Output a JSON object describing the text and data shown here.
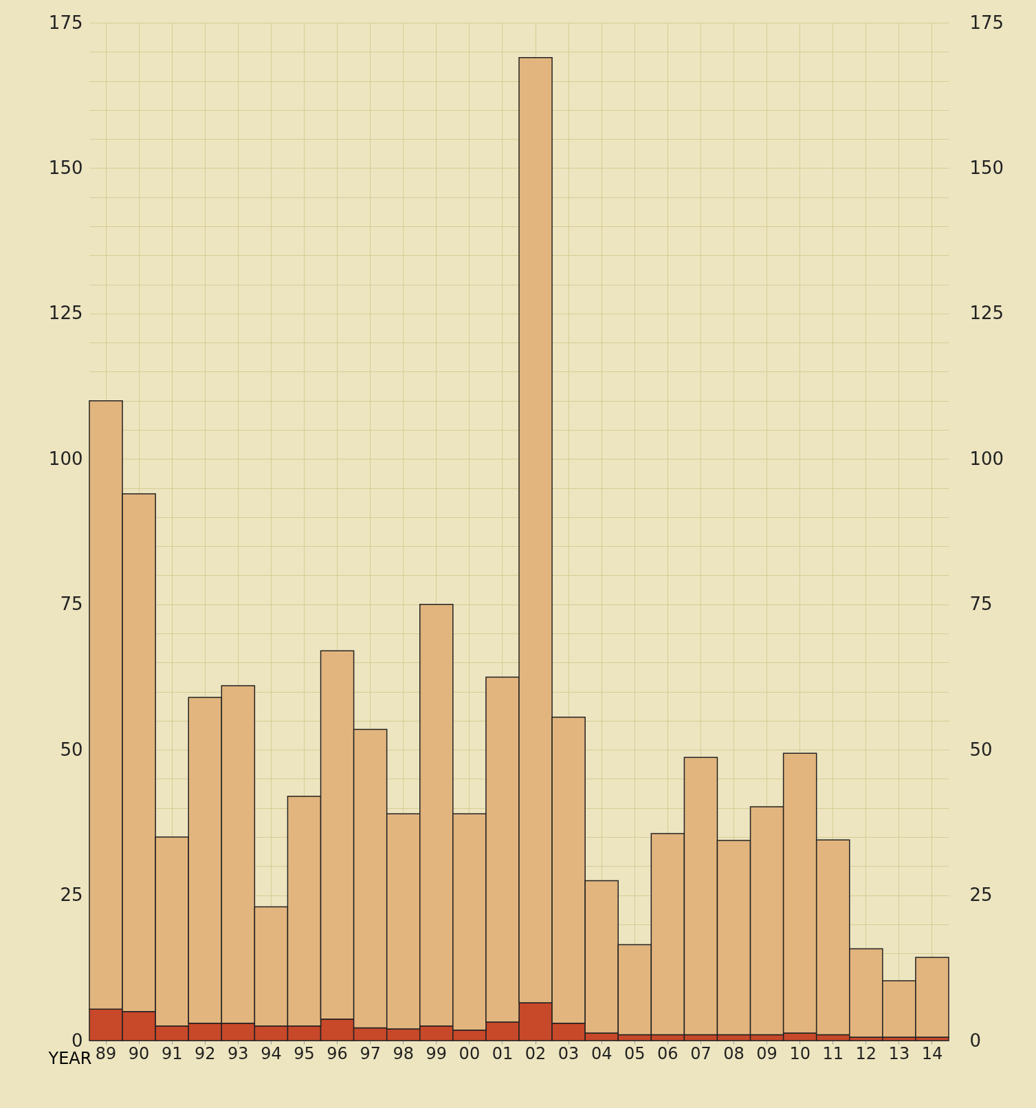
{
  "chart_data": {
    "type": "bar",
    "stacked": true,
    "xlabel": "YEAR",
    "categories": [
      "89",
      "90",
      "91",
      "92",
      "93",
      "94",
      "95",
      "96",
      "97",
      "98",
      "99",
      "00",
      "01",
      "02",
      "03",
      "04",
      "05",
      "06",
      "07",
      "08",
      "09",
      "10",
      "11",
      "12",
      "13",
      "14"
    ],
    "series": [
      {
        "color": "#c8482a",
        "values": [
          5.4,
          5,
          2.5,
          3,
          3,
          2.5,
          2.5,
          3.7,
          2.2,
          2,
          2.5,
          1.8,
          3.2,
          6.5,
          3,
          1.3,
          1,
          1,
          1,
          1,
          1,
          1.3,
          1,
          0.6,
          0.6,
          0.6
        ]
      },
      {
        "color": "#e2b57e",
        "values": [
          104.6,
          89,
          32.5,
          56,
          58,
          20.5,
          39.5,
          63.3,
          51.3,
          37,
          72.5,
          37.2,
          59.3,
          162.5,
          52.6,
          26.2,
          15.5,
          34.6,
          47.7,
          33.4,
          39.2,
          48.1,
          33.5,
          15.2,
          9.7,
          13.7
        ]
      }
    ],
    "ylim": [
      0,
      175
    ],
    "yticks": [
      0,
      {
        "value": 5,
        "label": null
      },
      {
        "value": 10,
        "label": null
      },
      {
        "value": 15,
        "label": null
      },
      {
        "value": 20,
        "label": null
      },
      25,
      {
        "value": 30,
        "label": null
      },
      {
        "value": 35,
        "label": null
      },
      {
        "value": 40,
        "label": null
      },
      {
        "value": 45,
        "label": null
      },
      50,
      {
        "value": 55,
        "label": null
      },
      {
        "value": 60,
        "label": null
      },
      {
        "value": 65,
        "label": null
      },
      {
        "value": 70,
        "label": null
      },
      75,
      {
        "value": 80,
        "label": null
      },
      {
        "value": 85,
        "label": null
      },
      {
        "value": 90,
        "label": null
      },
      {
        "value": 95,
        "label": null
      },
      100,
      {
        "value": 105,
        "label": null
      },
      {
        "value": 110,
        "label": null
      },
      {
        "value": 115,
        "label": null
      },
      {
        "value": 120,
        "label": null
      },
      125,
      {
        "value": 130,
        "label": null
      },
      {
        "value": 135,
        "label": null
      },
      {
        "value": 140,
        "label": null
      },
      {
        "value": 145,
        "label": null
      },
      150,
      {
        "value": 155,
        "label": null
      },
      {
        "value": 160,
        "label": null
      },
      {
        "value": 165,
        "label": null
      },
      {
        "value": 170,
        "label": null
      },
      175
    ],
    "y2lim": [
      0,
      175
    ],
    "y2ticks": [
      0,
      25,
      50,
      75,
      100,
      125,
      150,
      175
    ],
    "grid": true
  }
}
